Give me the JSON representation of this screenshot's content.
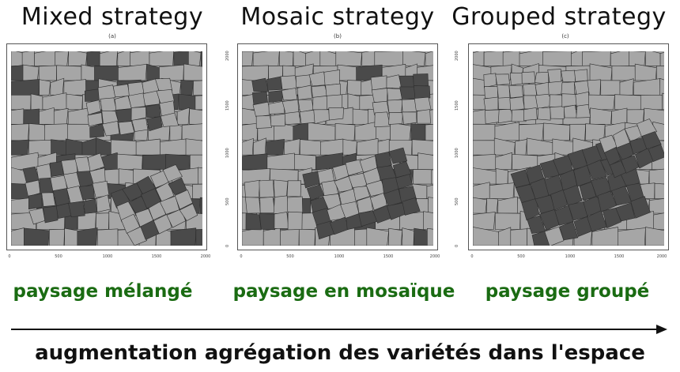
{
  "panels": [
    {
      "title": "Mixed strategy",
      "sublabel": "(a)",
      "caption": "paysage mélangé",
      "strategy": "mixed"
    },
    {
      "title": "Mosaic strategy",
      "sublabel": "(b)",
      "caption": "paysage en mosaïque",
      "strategy": "mosaic"
    },
    {
      "title": "Grouped strategy",
      "sublabel": "(c)",
      "caption": "paysage groupé",
      "strategy": "grouped"
    }
  ],
  "axis": {
    "x_ticks": [
      "0",
      "500",
      "1000",
      "1500",
      "2000"
    ],
    "y_ticks": [
      "0",
      "500",
      "1000",
      "1500",
      "2000"
    ]
  },
  "colors": {
    "light_field": "#a6a6a6",
    "dark_field": "#4a4a4a",
    "caption": "#1a6b12"
  },
  "bottom_label": "augmentation agrégation des variétés dans l'espace"
}
